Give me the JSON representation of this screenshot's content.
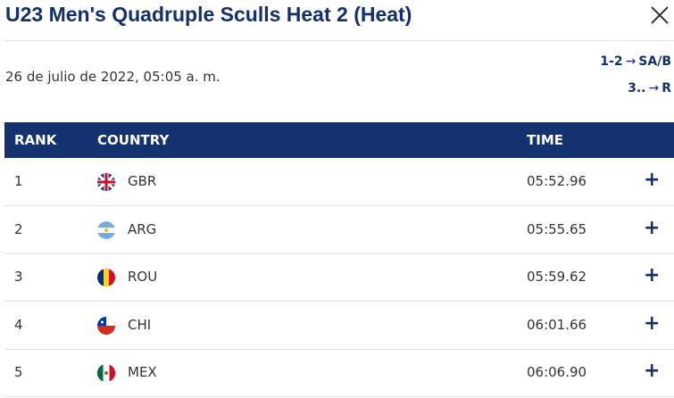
{
  "header": {
    "title": "U23 Men's Quadruple Sculls Heat 2 (Heat)",
    "date": "26 de julio de 2022, 05:05 a. m.",
    "progression": [
      {
        "places": "1-2",
        "target": "SA/B"
      },
      {
        "places": "3..",
        "target": "R"
      }
    ]
  },
  "table": {
    "columns": [
      "RANK",
      "COUNTRY",
      "TIME"
    ],
    "rows": [
      [
        "1",
        "GBR",
        "05:52.96"
      ],
      [
        "2",
        "ARG",
        "05:55.65"
      ],
      [
        "3",
        "ROU",
        "05:59.62"
      ],
      [
        "4",
        "CHI",
        "06:01.66"
      ],
      [
        "5",
        "MEX",
        "06:06.90"
      ]
    ]
  }
}
